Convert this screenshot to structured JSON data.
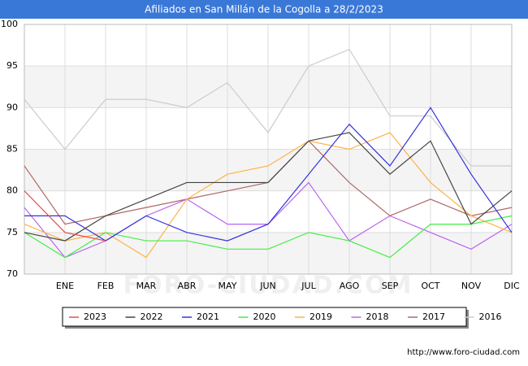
{
  "chart_data": {
    "type": "line",
    "title": "Afiliados en San Millán de la Cogolla a 28/2/2023",
    "categories": [
      null,
      "ENE",
      "FEB",
      "MAR",
      "ABR",
      "MAY",
      "JUN",
      "JUL",
      "AGO",
      "SEP",
      "OCT",
      "NOV",
      "DIC"
    ],
    "series": [
      {
        "name": "2023",
        "color": "#e84c4c",
        "values": [
          80,
          75,
          74,
          null,
          null,
          null,
          null,
          null,
          null,
          null,
          null,
          null,
          null
        ]
      },
      {
        "name": "2022",
        "color": "#444444",
        "values": [
          75,
          74,
          77,
          79,
          81,
          81,
          81,
          86,
          87,
          82,
          86,
          76,
          80
        ]
      },
      {
        "name": "2021",
        "color": "#3333dd",
        "values": [
          77,
          77,
          74,
          77,
          75,
          74,
          76,
          82,
          88,
          83,
          90,
          82,
          75
        ]
      },
      {
        "name": "2020",
        "color": "#44ee44",
        "values": [
          75,
          72,
          75,
          74,
          74,
          73,
          73,
          75,
          74,
          72,
          76,
          76,
          77
        ]
      },
      {
        "name": "2019",
        "color": "#ffb347",
        "values": [
          76,
          74,
          75,
          72,
          79,
          82,
          83,
          86,
          85,
          87,
          81,
          77,
          75
        ]
      },
      {
        "name": "2018",
        "color": "#bb66ee",
        "values": [
          78,
          72,
          74,
          77,
          79,
          76,
          76,
          81,
          74,
          77,
          75,
          73,
          76
        ]
      },
      {
        "name": "2017",
        "color": "#b06868",
        "values": [
          83,
          76,
          77,
          78,
          79,
          80,
          81,
          86,
          81,
          77,
          79,
          77,
          78
        ]
      },
      {
        "name": "2016",
        "color": "#cccccc",
        "values": [
          91,
          85,
          91,
          91,
          90,
          93,
          87,
          95,
          97,
          89,
          89,
          83,
          83
        ]
      }
    ],
    "ylim": [
      70,
      100
    ],
    "yticks": [
      70,
      75,
      80,
      85,
      90,
      95,
      100
    ],
    "grid": true,
    "watermark": "FORO-CIUDAD.COM",
    "source": "http://www.foro-ciudad.com"
  }
}
